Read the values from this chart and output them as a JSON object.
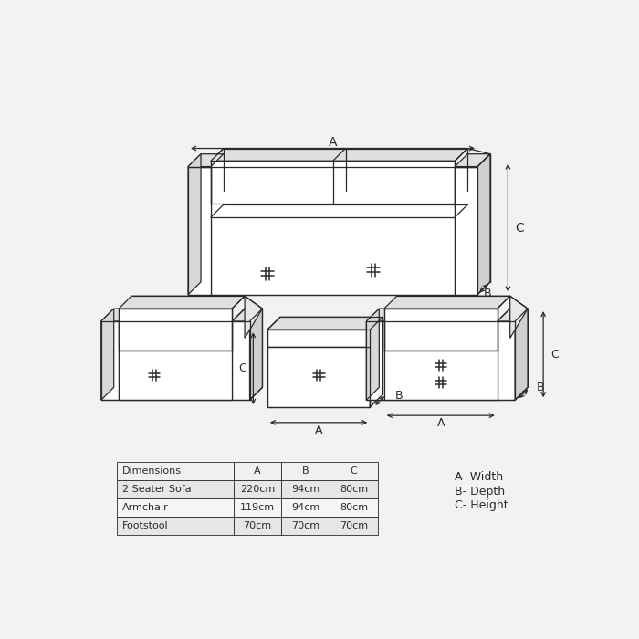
{
  "bg_color": "#f2f2f0",
  "line_color": "#2a2a2a",
  "table_data": {
    "headers": [
      "Dimensions",
      "A",
      "B",
      "C"
    ],
    "rows": [
      [
        "2 Seater Sofa",
        "220cm",
        "94cm",
        "80cm"
      ],
      [
        "Armchair",
        "119cm",
        "94cm",
        "80cm"
      ],
      [
        "Footstool",
        "70cm",
        "70cm",
        "70cm"
      ]
    ]
  },
  "legend": [
    "A- Width",
    "B- Depth",
    "C- Height"
  ]
}
